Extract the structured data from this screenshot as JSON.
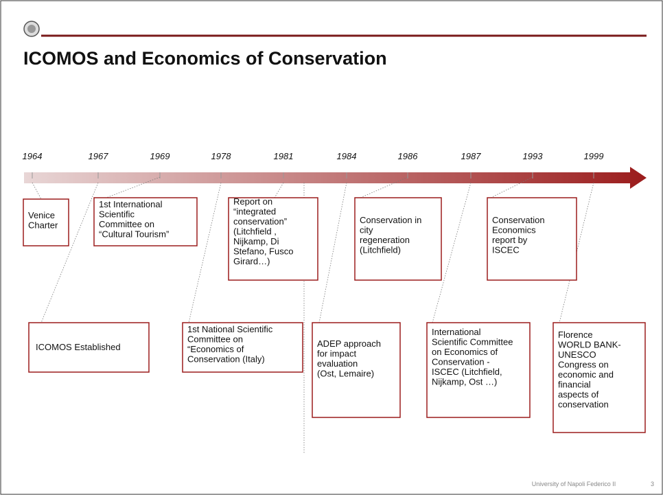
{
  "title": "ICOMOS and Economics of Conservation",
  "years": [
    "1964",
    "1967",
    "1969",
    "1978",
    "1981",
    "1984",
    "1986",
    "1987",
    "1993",
    "1999"
  ],
  "boxes": [
    {
      "lines": [
        "Venice",
        "Charter"
      ]
    },
    {
      "lines": [
        "1st International",
        "Scientific",
        "Committee on",
        "“Cultural Tourism”"
      ]
    },
    {
      "lines": [
        "Report on",
        "“integrated",
        "conservation”",
        "(Litchfield ,",
        "Nijkamp, Di",
        "Stefano, Fusco",
        "Girard…)"
      ]
    },
    {
      "lines": [
        "Conservation in",
        "city",
        "regeneration",
        "(Litchfield)"
      ]
    },
    {
      "lines": [
        "Conservation",
        "Economics",
        "report  by",
        "ISCEC"
      ]
    },
    {
      "lines": [
        "ICOMOS Established"
      ]
    },
    {
      "lines": [
        "1st National Scientific",
        "Committee on",
        "“Economics of",
        "Conservation (Italy)"
      ]
    },
    {
      "lines": [
        "ADEP approach",
        "for impact",
        "evaluation",
        "(Ost, Lemaire)"
      ]
    },
    {
      "lines": [
        "International",
        "Scientific Committee",
        "on Economics of",
        "Conservation -",
        "ISCEC (Litchfield,",
        "Nijkamp, Ost …)"
      ]
    },
    {
      "lines": [
        "Florence",
        "WORLD BANK-",
        "UNESCO",
        "Congress  on",
        "economic and",
        "financial",
        "aspects of",
        "conservation"
      ]
    }
  ],
  "footer": {
    "institution": "University of Napoli Federico II",
    "page": "3"
  }
}
